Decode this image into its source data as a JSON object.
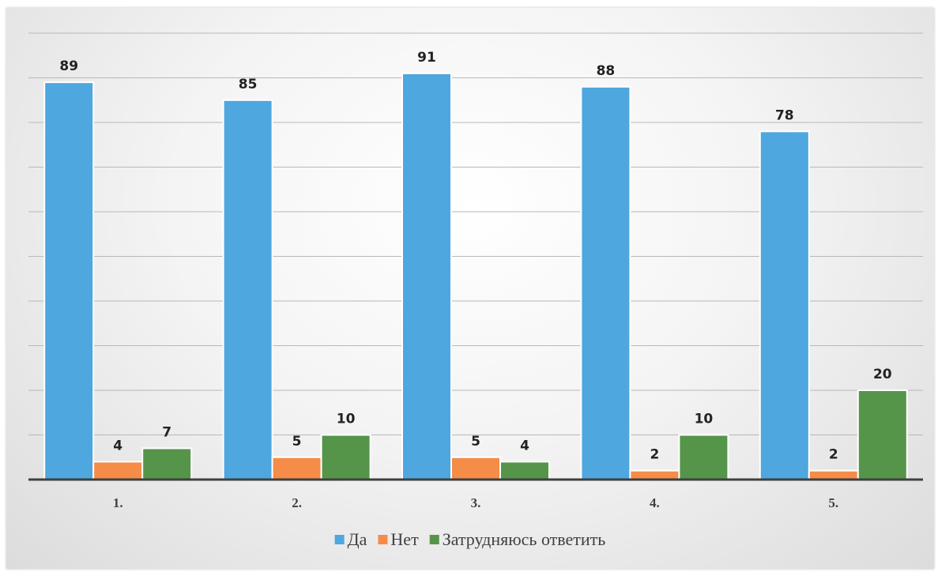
{
  "chart_data": {
    "type": "bar",
    "categories": [
      "1.",
      "2.",
      "3.",
      "4.",
      "5."
    ],
    "series": [
      {
        "name": "Да",
        "color": "#4EA7DE",
        "values": [
          89,
          85,
          91,
          88,
          78
        ]
      },
      {
        "name": "Нет",
        "color": "#F58C47",
        "values": [
          4,
          5,
          5,
          2,
          2
        ]
      },
      {
        "name": "Затрудняюсь ответить",
        "color": "#55954A",
        "values": [
          7,
          10,
          4,
          10,
          20
        ]
      }
    ],
    "ylim": [
      0,
      100
    ],
    "y_tick_step": 10,
    "grid": true,
    "data_labels": true,
    "legend_position": "bottom",
    "title": "",
    "xlabel": "",
    "ylabel": ""
  }
}
